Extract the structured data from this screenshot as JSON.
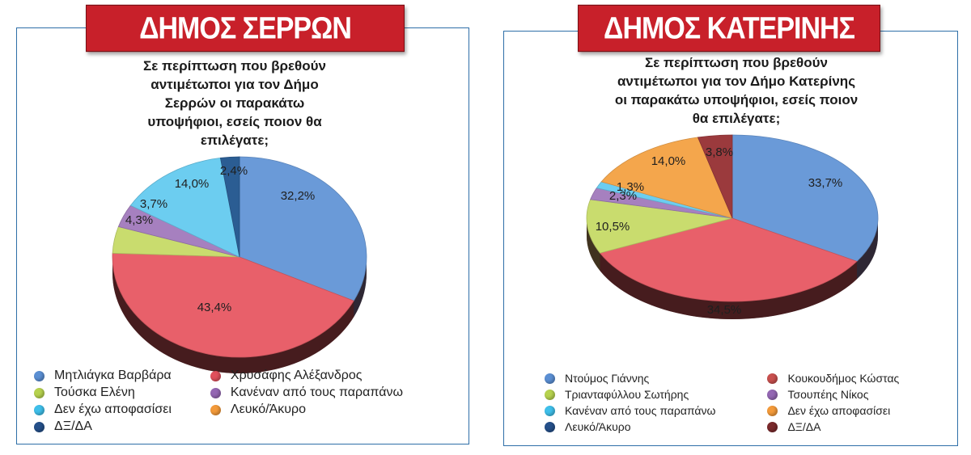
{
  "chart_data": [
    {
      "type": "pie",
      "banner": "ΔΗΜΟΣ ΣΕΡΡΩΝ",
      "title": "Σε περίπτωση που βρεθούν αντιμέτωποι για τον Δήμο Σερρών οι παρακάτω υποψήφιοι, εσείς ποιον θα επιλέγατε;",
      "title_lines": [
        "Σε περίπτωση που βρεθούν",
        "αντιμέτωποι για τον Δήμο",
        "Σερρών οι παρακάτω",
        "υποψήφιοι, εσείς ποιον θα",
        "επιλέγατε;"
      ],
      "slices": [
        {
          "label": "Μητλιάγκα Βαρβάρα",
          "value": 32.2,
          "display": "32,2%",
          "color": "#6a9ad8"
        },
        {
          "label": "Χρυσάφης Αλέξανδρος",
          "value": 43.4,
          "display": "43,4%",
          "color": "#e8606a"
        },
        {
          "label": "Τούσκα Ελένη",
          "value": 4.3,
          "display": "4,3%",
          "color": "#c9dc6e"
        },
        {
          "label": "Κανέναν από τους παραπάνω",
          "value": 3.7,
          "display": "3,7%",
          "color": "#a680bf"
        },
        {
          "label": "Δεν έχω αποφασίσει",
          "value": 14.0,
          "display": "14,0%",
          "color": "#6ccdf0"
        },
        {
          "label": "Λευκό/Άκυρο",
          "value": 0,
          "display": "",
          "color": "#f4a64c"
        },
        {
          "label": "ΔΞ/ΔΑ",
          "value": 2.4,
          "display": "2,4%",
          "color": "#2b5d93"
        }
      ]
    },
    {
      "type": "pie",
      "banner": "ΔΗΜΟΣ ΚΑΤΕΡΙΝΗΣ",
      "title": "Σε περίπτωση που βρεθούν αντιμέτωποι για τον Δήμο Κατερίνης οι παρακάτω υποψήφιοι, εσείς ποιον θα επιλέγατε;",
      "title_lines": [
        "Σε περίπτωση που βρεθούν",
        "αντιμέτωποι για τον Δήμο Κατερίνης",
        "οι παρακάτω υποψήφιοι, εσείς ποιον",
        "θα επιλέγατε;"
      ],
      "slices": [
        {
          "label": "Ντούμος Γιάννης",
          "value": 33.7,
          "display": "33,7%",
          "color": "#6a9ad8"
        },
        {
          "label": "Κουκουδήμος Κώστας",
          "value": 34.5,
          "display": "34,5%",
          "color": "#e8606a"
        },
        {
          "label": "Τριανταφύλλου Σωτήρης",
          "value": 10.5,
          "display": "10,5%",
          "color": "#c9dc6e"
        },
        {
          "label": "Τσουπέης Νίκος",
          "value": 2.3,
          "display": "2,3%",
          "color": "#a680bf"
        },
        {
          "label": "Κανέναν από τους παραπάνω",
          "value": 1.3,
          "display": "1,3%",
          "color": "#6ccdf0"
        },
        {
          "label": "Δεν έχω αποφασίσει",
          "value": 14.0,
          "display": "14,0%",
          "color": "#f4a64c"
        },
        {
          "label": "Λευκό/Άκυρο",
          "value": 0,
          "display": "",
          "color": "#2b5d93"
        },
        {
          "label": "ΔΞ/ΔΑ",
          "value": 3.8,
          "display": "3,8%",
          "color": "#9b3a3d"
        }
      ],
      "legend_colors": [
        "#6a9ad8",
        "#c9dc6e",
        "#6ccdf0",
        "#2b5d93",
        "#c8504e",
        "#a680bf",
        "#f4a64c",
        "#7a2a2c"
      ]
    }
  ],
  "legends": {
    "serres": {
      "items": [
        {
          "label": "Μητλιάγκα Βαρβάρα",
          "color": "#5b8fd3"
        },
        {
          "label": "Χρυσάφης Αλέξανδρος",
          "color": "#e0505c"
        },
        {
          "label": "Τούσκα Ελένη",
          "color": "#b6d24e"
        },
        {
          "label": "Κανέναν από τους παραπάνω",
          "color": "#9467b3"
        },
        {
          "label": "Δεν έχω αποφασίσει",
          "color": "#3fbfea"
        },
        {
          "label": "Λευκό/Άκυρο",
          "color": "#f39a3a"
        },
        {
          "label": "ΔΞ/ΔΑ",
          "color": "#25508a"
        }
      ]
    },
    "katerini": {
      "items": [
        {
          "label": "Ντούμος Γιάννης",
          "color": "#5b8fd3"
        },
        {
          "label": "Κουκουδήμος Κώστας",
          "color": "#c8504e"
        },
        {
          "label": "Τριανταφύλλου Σωτήρης",
          "color": "#b6d24e"
        },
        {
          "label": "Τσουπέης Νίκος",
          "color": "#9467b3"
        },
        {
          "label": "Κανέναν από τους παραπάνω",
          "color": "#3fbfea"
        },
        {
          "label": "Δεν έχω αποφασίσει",
          "color": "#f39a3a"
        },
        {
          "label": "Λευκό/Άκυρο",
          "color": "#25508a"
        },
        {
          "label": "ΔΞ/ΔΑ",
          "color": "#7a2a2c"
        }
      ]
    }
  }
}
